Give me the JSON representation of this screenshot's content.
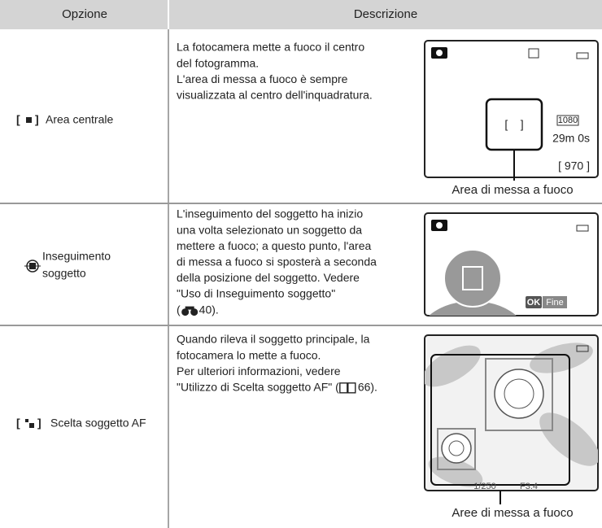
{
  "header": {
    "option": "Opzione",
    "description": "Descrizione"
  },
  "rows": [
    {
      "option": "Area centrale",
      "description": [
        "La fotocamera mette a fuoco il centro",
        "del fotogramma.",
        "L'area di messa a fuoco è sempre",
        "visualizzata al centro dell'inquadratura."
      ],
      "screen": [
        "1080",
        "29m 0s",
        "[ 970 ]"
      ],
      "caption": "Area di messa a fuoco"
    },
    {
      "option": [
        "Inseguimento",
        "soggetto"
      ],
      "description": [
        "L'inseguimento del soggetto ha inizio",
        "una volta selezionato un soggetto da",
        "mettere a fuoco; a questo punto, l'area",
        "di messa a fuoco si sposterà a seconda",
        "della posizione del soggetto. Vedere",
        "\"Uso di Inseguimento soggetto\""
      ],
      "reference": {
        "before": "(",
        "after": "40)."
      },
      "screen": [
        "OK",
        "Fine"
      ]
    },
    {
      "option": "Scelta soggetto AF",
      "description": [
        "Quando rileva il soggetto principale, la",
        "fotocamera lo mette a fuoco.",
        "Per ulteriori informazioni, vedere"
      ],
      "reference": {
        "before": "\"Utilizzo di Scelta soggetto AF\" (",
        "after": "66)."
      },
      "screen": [
        "1/250",
        "F3.4"
      ],
      "caption": "Aree di messa a fuoco"
    }
  ]
}
